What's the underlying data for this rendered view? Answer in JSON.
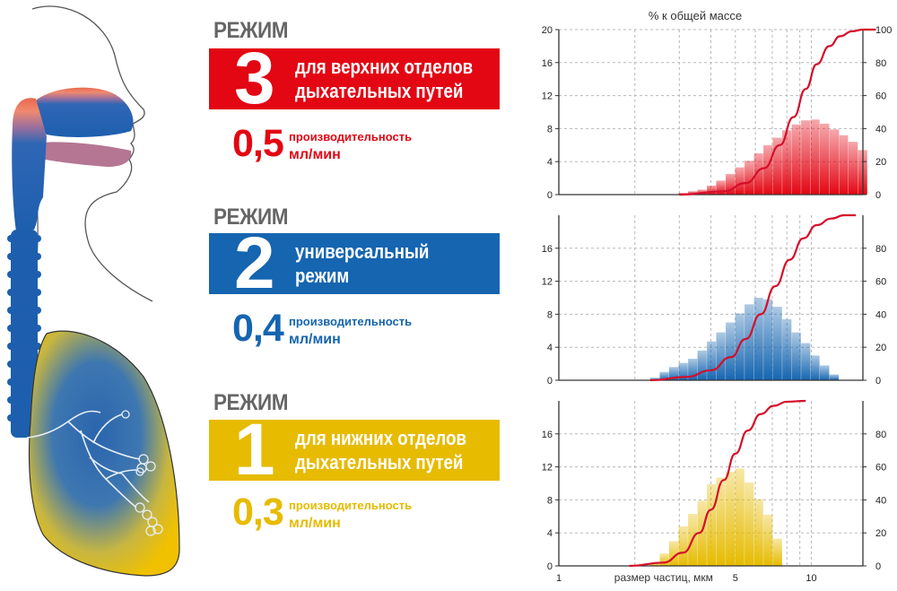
{
  "colors": {
    "red": "#e30613",
    "blue": "#1565b0",
    "yellow": "#e6bb00",
    "curve": "#d40e2a",
    "grey_text": "#666666"
  },
  "modes": [
    {
      "label": "РЕЖИМ",
      "number": "3",
      "description": [
        "для верхних отделов",
        "дыхательных путей"
      ],
      "rate": "0,5",
      "rate_caption": "производительность",
      "rate_unit": "мл/мин",
      "color": "#e30613"
    },
    {
      "label": "РЕЖИМ",
      "number": "2",
      "description": [
        "универсальный",
        "режим"
      ],
      "rate": "0,4",
      "rate_caption": "производительность",
      "rate_unit": "мл/мин",
      "color": "#1565b0"
    },
    {
      "label": "РЕЖИМ",
      "number": "1",
      "description": [
        "для нижних отделов",
        "дыхательных путей"
      ],
      "rate": "0,3",
      "rate_caption": "производительность",
      "rate_unit": "мл/мин",
      "color": "#e6bb00"
    }
  ],
  "chart_data": [
    {
      "type": "bar",
      "title": "% к общей массе",
      "xlabel": "",
      "x_scale": "log",
      "x": [
        1.5,
        1.63,
        1.78,
        1.94,
        2.11,
        2.3,
        2.51,
        2.73,
        2.98,
        3.25,
        3.54,
        3.86,
        4.2,
        4.58,
        4.99,
        5.44,
        5.93,
        6.46,
        7.04,
        7.67,
        8.36,
        9.11,
        9.93,
        10.8,
        11.8,
        12.9,
        14.0,
        15.3
      ],
      "values": [
        0,
        0,
        0,
        0,
        0,
        0,
        0,
        0,
        0.2,
        0.4,
        0.6,
        1.1,
        1.7,
        2.5,
        3.3,
        4.1,
        5.0,
        6.0,
        6.9,
        7.8,
        8.5,
        9.0,
        9.1,
        8.6,
        7.9,
        7.2,
        6.4,
        5.4
      ],
      "series": [
        {
          "axis": "left",
          "ylim": [
            0,
            20
          ],
          "yticks": [
            0,
            4,
            8,
            12,
            16,
            20
          ]
        },
        {
          "axis": "right",
          "ylim": [
            0,
            100
          ],
          "yticks": [
            0,
            20,
            40,
            60,
            80,
            100
          ]
        }
      ],
      "cumulative": [
        [
          3.0,
          0
        ],
        [
          4.5,
          2
        ],
        [
          5.5,
          7
        ],
        [
          6.5,
          16
        ],
        [
          7.5,
          30
        ],
        [
          8.5,
          47
        ],
        [
          9.5,
          64
        ],
        [
          10.5,
          79
        ],
        [
          11.8,
          90
        ],
        [
          13.0,
          96
        ],
        [
          14.5,
          99
        ],
        [
          16.0,
          100
        ],
        [
          18.0,
          100
        ]
      ],
      "grid": true,
      "color": "#e30613"
    },
    {
      "type": "bar",
      "xlabel": "",
      "x_scale": "log",
      "x": [
        2.3,
        2.51,
        2.73,
        2.98,
        3.25,
        3.54,
        3.86,
        4.2,
        4.58,
        4.99,
        5.44,
        5.93,
        6.46,
        7.04,
        7.67,
        8.36,
        9.11,
        9.93,
        10.8,
        11.8
      ],
      "values": [
        0.3,
        1.0,
        1.6,
        2.1,
        2.6,
        3.6,
        4.7,
        5.8,
        7.0,
        8.1,
        9.2,
        10.0,
        9.8,
        8.9,
        7.4,
        5.8,
        4.5,
        3.0,
        1.8,
        0.7
      ],
      "series": [
        {
          "axis": "left",
          "ylim": [
            0,
            20
          ],
          "yticks": [
            0,
            4,
            8,
            12,
            16
          ]
        },
        {
          "axis": "right",
          "ylim": [
            0,
            100
          ],
          "yticks": [
            0,
            20,
            40,
            60,
            80
          ]
        }
      ],
      "cumulative": [
        [
          2.3,
          0
        ],
        [
          3.2,
          2
        ],
        [
          4.0,
          6
        ],
        [
          4.8,
          14
        ],
        [
          5.5,
          25
        ],
        [
          6.3,
          40
        ],
        [
          7.2,
          57
        ],
        [
          8.2,
          73
        ],
        [
          9.3,
          86
        ],
        [
          10.5,
          94
        ],
        [
          12.0,
          98
        ],
        [
          13.5,
          100
        ],
        [
          15.0,
          100
        ]
      ],
      "grid": true,
      "color": "#1565b0"
    },
    {
      "type": "bar",
      "xlabel": "размер частиц, мкм",
      "x_scale": "log",
      "xticks": [
        1,
        5,
        10
      ],
      "x": [
        2.3,
        2.51,
        2.73,
        2.98,
        3.25,
        3.54,
        3.86,
        4.2,
        4.58,
        4.99,
        5.44,
        5.93,
        6.46,
        7.04
      ],
      "values": [
        0.4,
        1.5,
        3.0,
        4.8,
        6.3,
        7.9,
        9.9,
        10.7,
        11.4,
        11.8,
        10.1,
        8.1,
        6.2,
        3.3
      ],
      "series": [
        {
          "axis": "left",
          "ylim": [
            0,
            20
          ],
          "yticks": [
            0,
            4,
            8,
            12,
            16
          ]
        },
        {
          "axis": "right",
          "ylim": [
            0,
            100
          ],
          "yticks": [
            0,
            20,
            40,
            60,
            80
          ]
        }
      ],
      "cumulative": [
        [
          1.9,
          0
        ],
        [
          2.6,
          2
        ],
        [
          3.1,
          8
        ],
        [
          3.6,
          20
        ],
        [
          4.0,
          34
        ],
        [
          4.5,
          52
        ],
        [
          5.0,
          68
        ],
        [
          5.6,
          82
        ],
        [
          6.3,
          92
        ],
        [
          7.1,
          97
        ],
        [
          8.0,
          99.5
        ],
        [
          9.5,
          100
        ]
      ],
      "grid": true,
      "color": "#e6bb00"
    }
  ]
}
